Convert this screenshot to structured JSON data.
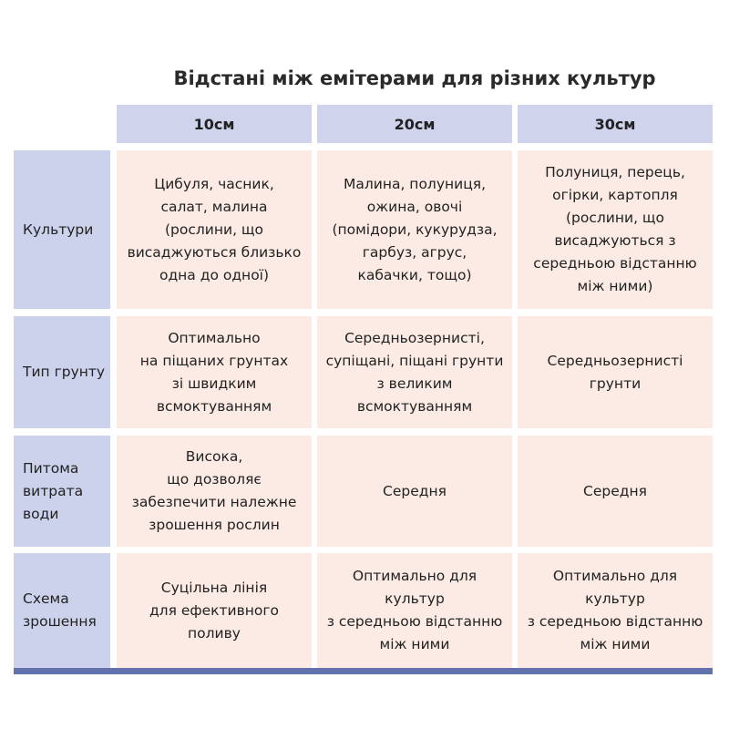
{
  "title": "Відстані між емітерами для різних культур",
  "columns": [
    "10см",
    "20см",
    "30см"
  ],
  "rows": [
    {
      "label": "Культури",
      "values": [
        "Цибуля, часник,\nсалат, малина\n(рослини, що\nвисаджуються близько\nодна до одної)",
        "Малина, полуниця,\nожина, овочі\n(помідори, кукурудза,\nгарбуз, агрус,\nкабачки, тощо)",
        "Полуниця, перець,\nогірки, картопля\n(рослини, що\nвисаджуються з\nсередньою відстанню\nміж ними)"
      ]
    },
    {
      "label": "Тип грунту",
      "values": [
        "Оптимально\nна піщаних грунтах\nзі швидким\nвсмоктуванням",
        "Середньозернисті,\nсупіщані, піщані грунти\nз великим\nвсмоктуванням",
        "Середньозернисті\nгрунти"
      ]
    },
    {
      "label": "Питома\nвитрата\nводи",
      "values": [
        "Висока,\nщо дозволяє\nзабезпечити належне\nзрошення рослин",
        "Середня",
        "Середня"
      ]
    },
    {
      "label": "Схема\nзрошення",
      "values": [
        "Суцільна лінія\nдля ефективного\nполиву",
        "Оптимально для\nкультур\nз середньою відстанню\nміж ними",
        "Оптимально для\nкультур\nз середньою відстанню\nміж ними"
      ]
    }
  ],
  "colors": {
    "header": "#cfd4ec",
    "label": "#cdd2ec",
    "cell": "#fcebe4",
    "bar": "#6272ac"
  }
}
